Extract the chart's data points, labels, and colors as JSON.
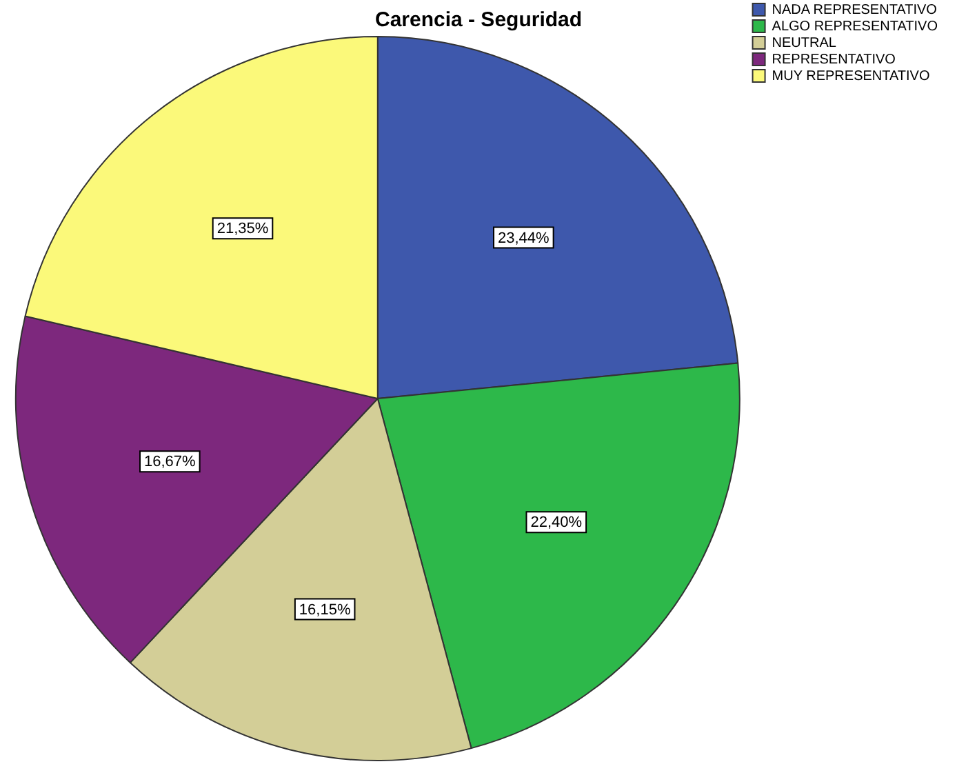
{
  "chart_data": {
    "type": "pie",
    "title": "Carencia - Seguridad",
    "categories": [
      "NADA REPRESENTATIVO",
      "ALGO REPRESENTATIVO",
      "NEUTRAL",
      "REPRESENTATIVO",
      "MUY REPRESENTATIVO"
    ],
    "values": [
      23.44,
      22.4,
      16.15,
      16.67,
      21.35
    ],
    "colors": [
      "#3e58ac",
      "#2db84a",
      "#d3ce97",
      "#7d287d",
      "#fbf97a"
    ],
    "value_labels": [
      "23,44%",
      "22,40%",
      "16,15%",
      "16,67%",
      "21,35%"
    ],
    "legend": "top right"
  }
}
